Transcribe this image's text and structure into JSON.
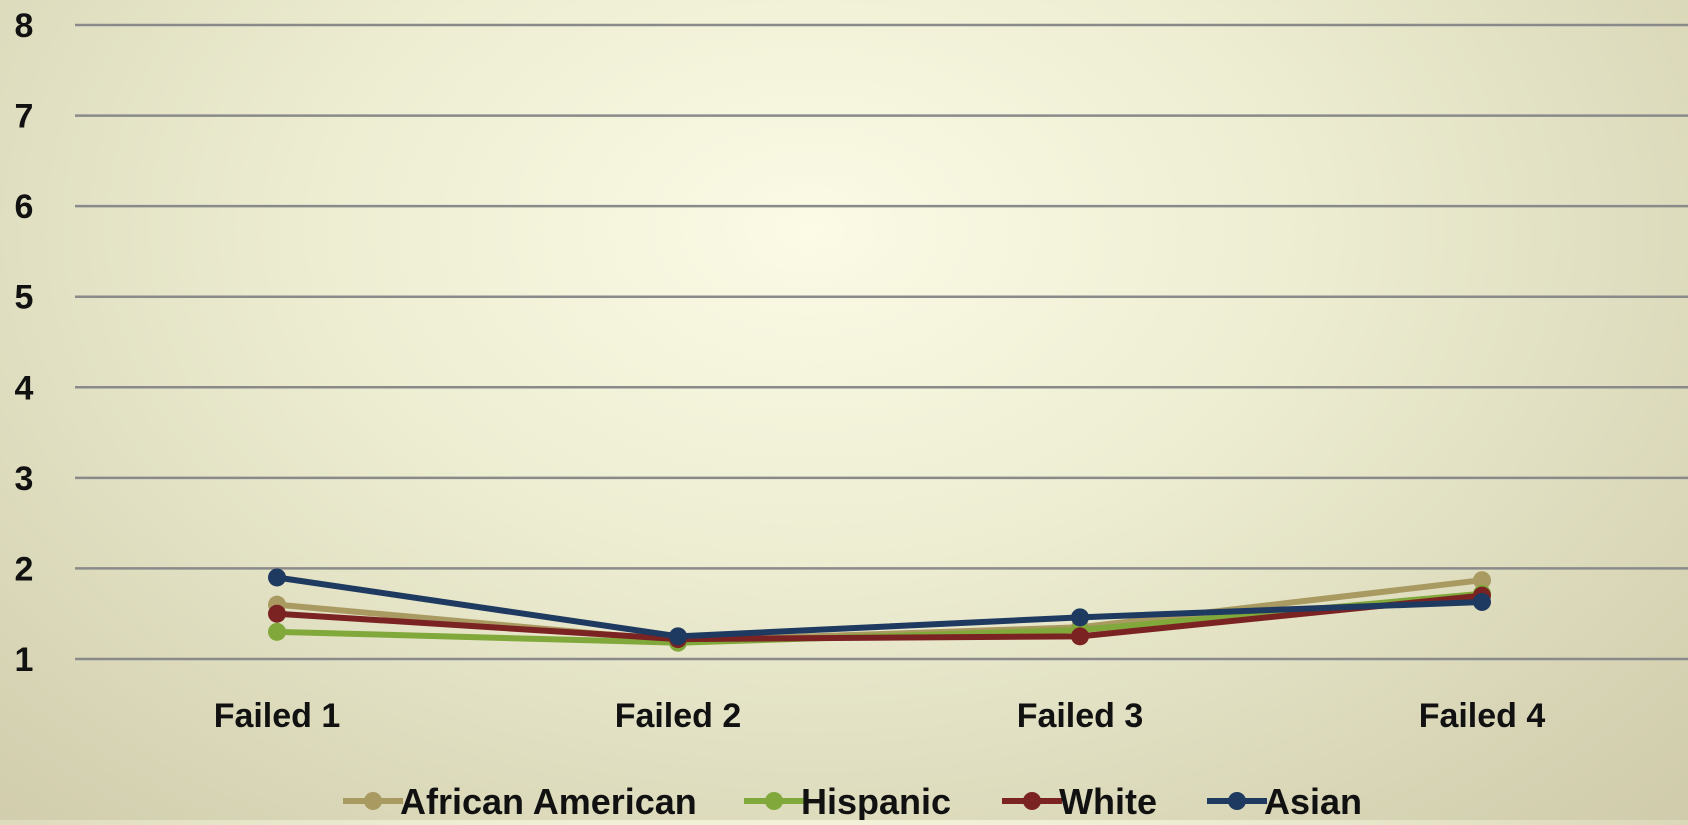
{
  "chart_data": {
    "type": "line",
    "title": "",
    "xlabel": "",
    "ylabel": "",
    "categories": [
      "Failed 1",
      "Failed 2",
      "Failed 3",
      "Failed 4"
    ],
    "y_ticks": [
      "1",
      "2",
      "3",
      "4",
      "5",
      "6",
      "7",
      "8"
    ],
    "ylim": [
      1,
      8
    ],
    "grid": true,
    "legend_position": "bottom",
    "series": [
      {
        "name": "African American",
        "color": "#a99a61",
        "values": [
          1.6,
          1.2,
          1.35,
          1.87
        ]
      },
      {
        "name": "Hispanic",
        "color": "#80a83a",
        "values": [
          1.3,
          1.18,
          1.32,
          1.72
        ]
      },
      {
        "name": "White",
        "color": "#7b2323",
        "values": [
          1.5,
          1.22,
          1.25,
          1.7
        ]
      },
      {
        "name": "Asian",
        "color": "#1f3a60",
        "values": [
          1.9,
          1.25,
          1.46,
          1.63
        ]
      }
    ]
  }
}
